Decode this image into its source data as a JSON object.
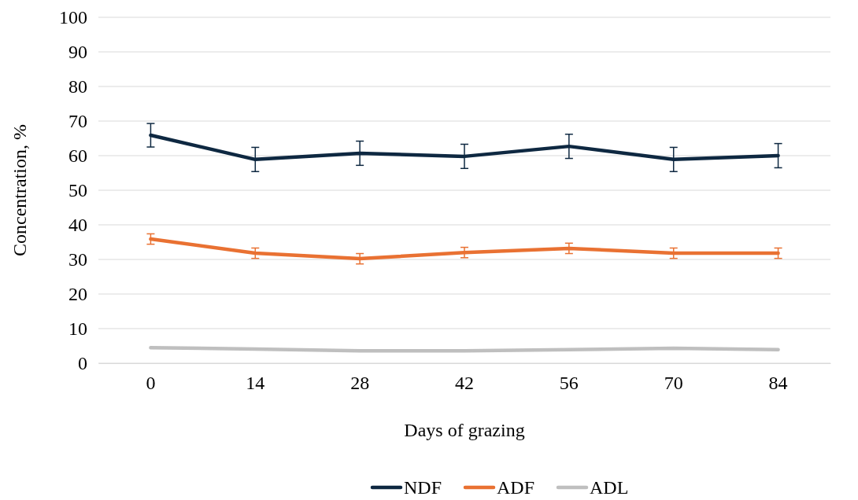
{
  "chart_data": {
    "type": "line",
    "xlabel": "Days of grazing",
    "ylabel": "Concentration, %",
    "categories": [
      "0",
      "14",
      "28",
      "42",
      "56",
      "70",
      "84"
    ],
    "ylim": [
      0,
      100
    ],
    "yticks": [
      0,
      10,
      20,
      30,
      40,
      50,
      60,
      70,
      80,
      90,
      100
    ],
    "grid": "y",
    "legend": "bottom",
    "marker": "none",
    "line_style": "solid",
    "series": [
      {
        "name": "NDF",
        "color": "#0e2841",
        "values": [
          65.9,
          58.9,
          60.7,
          59.8,
          62.7,
          58.9,
          60.0
        ],
        "errors": [
          3.4,
          3.5,
          3.5,
          3.5,
          3.5,
          3.5,
          3.5
        ]
      },
      {
        "name": "ADF",
        "color": "#e97132",
        "values": [
          35.9,
          31.8,
          30.2,
          32.0,
          33.2,
          31.8,
          31.8
        ],
        "errors": [
          1.5,
          1.5,
          1.5,
          1.5,
          1.5,
          1.5,
          1.5
        ]
      },
      {
        "name": "ADL",
        "color": "#bfbfbf",
        "values": [
          4.5,
          4.1,
          3.6,
          3.6,
          3.9,
          4.3,
          3.9
        ]
      }
    ]
  }
}
